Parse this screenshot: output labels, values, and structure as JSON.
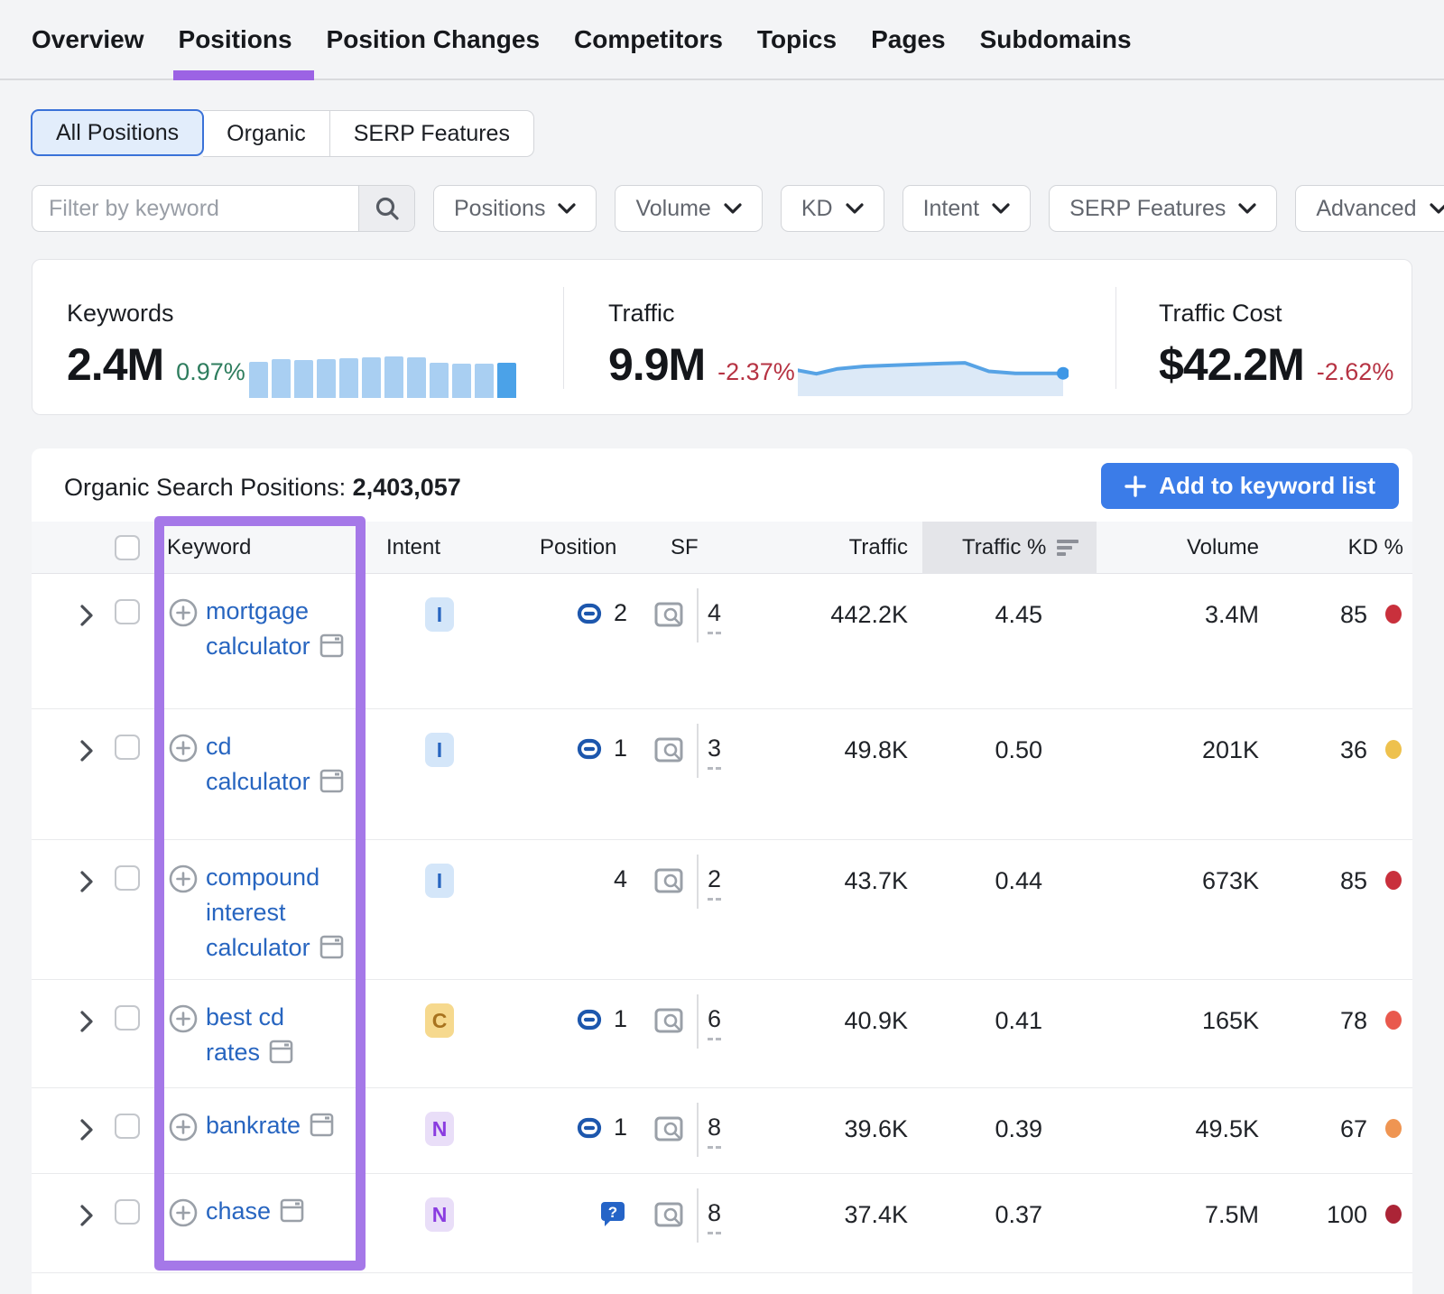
{
  "nav": {
    "tabs": [
      {
        "label": "Overview",
        "active": false
      },
      {
        "label": "Positions",
        "active": true
      },
      {
        "label": "Position Changes",
        "active": false
      },
      {
        "label": "Competitors",
        "active": false
      },
      {
        "label": "Topics",
        "active": false
      },
      {
        "label": "Pages",
        "active": false
      },
      {
        "label": "Subdomains",
        "active": false
      }
    ]
  },
  "segmented": {
    "options": [
      {
        "label": "All Positions",
        "selected": true
      },
      {
        "label": "Organic",
        "selected": false
      },
      {
        "label": "SERP Features",
        "selected": false
      }
    ]
  },
  "filters": {
    "keyword_placeholder": "Filter by keyword",
    "dropdowns": [
      "Positions",
      "Volume",
      "KD",
      "Intent",
      "SERP Features",
      "Advanced"
    ]
  },
  "stats": {
    "keywords": {
      "label": "Keywords",
      "value": "2.4M",
      "change": "0.97%",
      "change_color": "#2e7d5e"
    },
    "traffic": {
      "label": "Traffic",
      "value": "9.9M",
      "change": "-2.37%",
      "change_color": "#b63343"
    },
    "traffic_cost": {
      "label": "Traffic Cost",
      "value": "$42.2M",
      "change": "-2.62%",
      "change_color": "#b63343"
    }
  },
  "chart_data": [
    {
      "type": "bar",
      "title": "Keywords trend sparkline",
      "values": [
        86,
        92,
        90,
        92,
        93,
        95,
        98,
        95,
        84,
        80,
        80,
        83
      ],
      "bar_color": "#a9cff2",
      "highlight_last_color": "#4ba2e8"
    },
    {
      "type": "area",
      "title": "Traffic trend sparkline",
      "x": [
        0,
        7,
        15,
        25,
        35,
        45,
        55,
        63,
        72,
        82,
        100
      ],
      "values": [
        52,
        45,
        55,
        60,
        62,
        64,
        66,
        67,
        50,
        46,
        46
      ],
      "line_color": "#57a3e5",
      "fill_color": "#dce9f7",
      "end_dot_color": "#3e97e6"
    }
  ],
  "table": {
    "title_label": "Organic Search Positions:",
    "title_count": "2,403,057",
    "add_button_label": "Add to keyword list",
    "columns": [
      "Keyword",
      "Intent",
      "Position",
      "SF",
      "Traffic",
      "Traffic %",
      "Volume",
      "KD %"
    ],
    "sorted_column": "Traffic %",
    "annotation": {
      "highlighted_column": "Keyword",
      "highlight_color": "#a578e8"
    },
    "rows": [
      {
        "keyword": "mortgage calculator",
        "intent": "I",
        "intent_bg": "#d4e6f9",
        "intent_color": "#2765c0",
        "position": "2",
        "position_icon": "link",
        "sf": "4",
        "traffic": "442.2K",
        "traffic_pct": "4.45",
        "volume": "3.4M",
        "kd": "85",
        "kd_dot_color": "#c9303c"
      },
      {
        "keyword": "cd calculator",
        "intent": "I",
        "intent_bg": "#d4e6f9",
        "intent_color": "#2765c0",
        "position": "1",
        "position_icon": "link",
        "sf": "3",
        "traffic": "49.8K",
        "traffic_pct": "0.50",
        "volume": "201K",
        "kd": "36",
        "kd_dot_color": "#eec14d"
      },
      {
        "keyword": "compound interest calculator",
        "intent": "I",
        "intent_bg": "#d4e6f9",
        "intent_color": "#2765c0",
        "position": "4",
        "position_icon": "none",
        "sf": "2",
        "traffic": "43.7K",
        "traffic_pct": "0.44",
        "volume": "673K",
        "kd": "85",
        "kd_dot_color": "#c9303c"
      },
      {
        "keyword": "best cd rates",
        "intent": "C",
        "intent_bg": "#f6d98e",
        "intent_color": "#a8731f",
        "position": "1",
        "position_icon": "link",
        "sf": "6",
        "traffic": "40.9K",
        "traffic_pct": "0.41",
        "volume": "165K",
        "kd": "78",
        "kd_dot_color": "#e9594d"
      },
      {
        "keyword": "bankrate",
        "intent": "N",
        "intent_bg": "#e9def8",
        "intent_color": "#8a3ce0",
        "position": "1",
        "position_icon": "link",
        "sf": "8",
        "traffic": "39.6K",
        "traffic_pct": "0.39",
        "volume": "49.5K",
        "kd": "67",
        "kd_dot_color": "#ef9552"
      },
      {
        "keyword": "chase",
        "intent": "N",
        "intent_bg": "#e9def8",
        "intent_color": "#8a3ce0",
        "position": "",
        "position_icon": "question",
        "sf": "8",
        "traffic": "37.4K",
        "traffic_pct": "0.37",
        "volume": "7.5M",
        "kd": "100",
        "kd_dot_color": "#ab2436"
      }
    ]
  }
}
